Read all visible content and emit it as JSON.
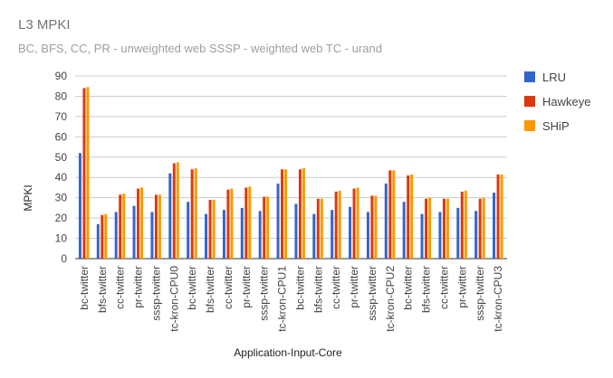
{
  "chart_data": {
    "type": "bar",
    "title": "L3 MPKI",
    "subtitle": "BC, BFS, CC, PR - unweighted web SSSP - weighted web TC - urand",
    "xlabel": "Application-Input-Core",
    "ylabel": "MPKI",
    "ylim": [
      0,
      90
    ],
    "yticks": [
      0,
      10,
      20,
      30,
      40,
      50,
      60,
      70,
      80,
      90
    ],
    "grid": true,
    "legend_position": "right",
    "categories": [
      "bc-twitter",
      "bfs-twitter",
      "cc-twitter",
      "pr-twitter",
      "sssp-twitter",
      "tc-kron-CPU0",
      "bc-twitter",
      "bfs-twitter",
      "cc-twitter",
      "pr-twitter",
      "sssp-twitter",
      "tc-kron-CPU1",
      "bc-twitter",
      "bfs-twitter",
      "cc-twitter",
      "pr-twitter",
      "sssp-twitter",
      "tc-kron-CPU2",
      "bc-twitter",
      "bfs-twitter",
      "cc-twitter",
      "pr-twitter",
      "sssp-twitter",
      "tc-kron-CPU3"
    ],
    "series": [
      {
        "name": "LRU",
        "color": "#3366cc",
        "values": [
          52,
          17,
          23,
          26,
          23,
          42,
          28,
          22,
          24,
          25,
          23.5,
          37,
          27,
          22,
          24,
          25.5,
          23,
          37,
          28,
          22,
          23,
          25,
          23.5,
          32.5
        ]
      },
      {
        "name": "Hawkeye",
        "color": "#dc3912",
        "values": [
          84,
          21.5,
          31.5,
          34.5,
          31.5,
          47,
          44,
          29,
          34,
          35,
          30.5,
          44,
          44,
          29.5,
          33,
          34.5,
          31,
          43.5,
          41,
          29.5,
          29.5,
          33,
          29.5,
          41.5
        ]
      },
      {
        "name": "SHiP",
        "color": "#ff9900",
        "values": [
          84.5,
          22,
          32,
          35,
          31.5,
          47.5,
          44.5,
          29,
          34.5,
          35.5,
          30.5,
          44,
          44.5,
          29.5,
          33.5,
          35,
          31,
          43.5,
          41.5,
          30,
          29.5,
          33.5,
          30,
          41.5
        ]
      }
    ]
  }
}
